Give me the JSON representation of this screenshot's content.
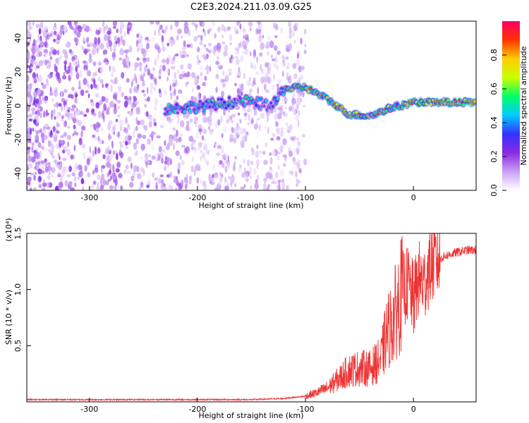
{
  "title": "C2E3.2024.211.03.09.G25",
  "chart_data": [
    {
      "type": "heatmap",
      "xlabel": "Height of straight line (km)",
      "ylabel": "Frequency (Hz)",
      "xlim": [
        -358,
        58
      ],
      "ylim": [
        -50,
        50
      ],
      "xticks": [
        -300,
        -200,
        -100,
        0
      ],
      "yticks": [
        -40,
        -20,
        0,
        20,
        40
      ],
      "colorbar": {
        "label": "Normalized spectral amplitude",
        "range": [
          0,
          1
        ],
        "ticks": [
          "0.0",
          "0.2",
          "0.4",
          "0.6",
          "0.8"
        ],
        "colormap": [
          "#ffffff",
          "#c9a0f4",
          "#8a2be2",
          "#3333ff",
          "#00ccff",
          "#00ff66",
          "#ccff00",
          "#ffcc00",
          "#ff3300",
          "#ff0066"
        ]
      },
      "signal_track": [
        {
          "x": -230,
          "y": -2
        },
        {
          "x": -190,
          "y": 0
        },
        {
          "x": -160,
          "y": 3
        },
        {
          "x": -130,
          "y": 0
        },
        {
          "x": -120,
          "y": 10
        },
        {
          "x": -100,
          "y": 11
        },
        {
          "x": -80,
          "y": 4
        },
        {
          "x": -60,
          "y": -5
        },
        {
          "x": -40,
          "y": -6
        },
        {
          "x": -20,
          "y": -1
        },
        {
          "x": 0,
          "y": 2
        },
        {
          "x": 20,
          "y": 2
        },
        {
          "x": 58,
          "y": 2
        }
      ],
      "noise_region_xmax": -110
    },
    {
      "type": "line",
      "xlabel": "Height of straight line (km)",
      "ylabel": "SNR (10 * v/v)",
      "yscale_label": "(x10⁴)",
      "xlim": [
        -358,
        58
      ],
      "ylim": [
        0,
        1.5
      ],
      "xticks": [
        -300,
        -200,
        -100,
        0
      ],
      "yticks": [
        "0.5",
        "1.0",
        "1.5"
      ],
      "line_color": "#ee3333",
      "series": [
        {
          "x": [
            -358,
            -300,
            -250,
            -200,
            -150,
            -120,
            -100,
            -90,
            -80,
            -70,
            -60,
            -50,
            -40,
            -30,
            -25,
            -20,
            -15,
            -10,
            -5,
            0,
            5,
            10,
            15,
            20,
            30,
            40,
            50,
            58
          ],
          "y": [
            0.02,
            0.02,
            0.02,
            0.02,
            0.02,
            0.03,
            0.05,
            0.08,
            0.12,
            0.2,
            0.28,
            0.3,
            0.3,
            0.38,
            0.6,
            0.7,
            0.85,
            1.0,
            1.05,
            0.9,
            1.1,
            1.05,
            1.2,
            1.25,
            1.3,
            1.33,
            1.35,
            1.35
          ]
        }
      ]
    }
  ]
}
